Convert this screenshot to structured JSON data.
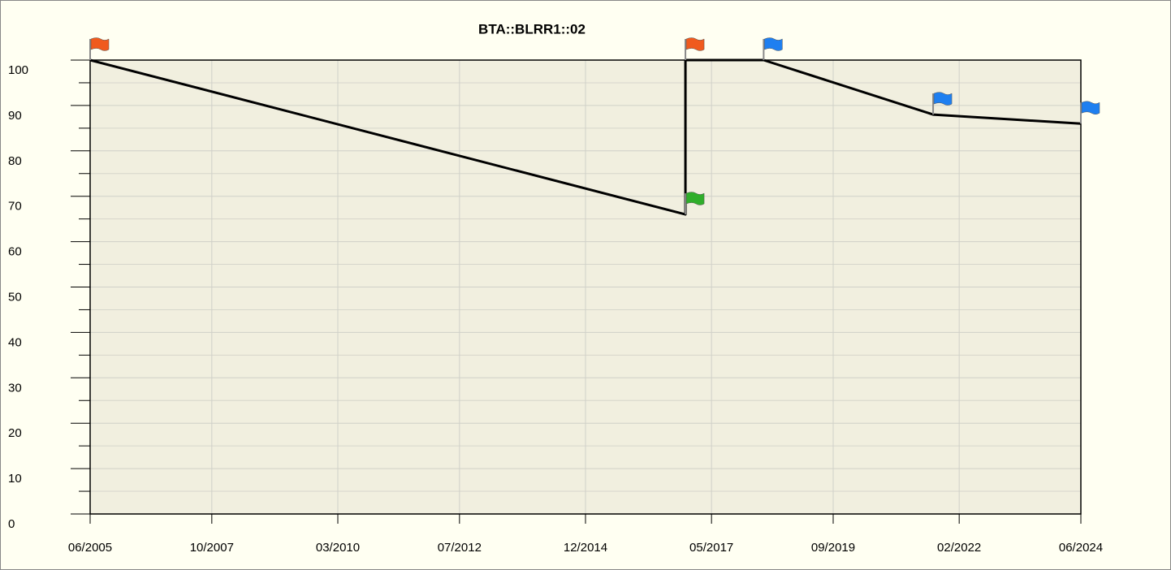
{
  "chart_data": {
    "type": "line",
    "title": "BTA::BLRR1::02",
    "x": [
      "2005-06",
      "2016-11",
      "2016-11",
      "2018-05",
      "2021-08",
      "2024-06"
    ],
    "series": [
      {
        "name": "BTA::BLRR1::02",
        "color": "#000000",
        "values": [
          100,
          66,
          100,
          100,
          88,
          86
        ],
        "point_colors": [
          "#f05a1e",
          "#2fae2a",
          "#f05a1e",
          "#1e7ff0",
          "#1e7ff0",
          "#1e7ff0"
        ]
      }
    ],
    "xlim": [
      "2005-06",
      "2024-06"
    ],
    "xticks": [
      {
        "value": "2005-06",
        "label": "06/2005"
      },
      {
        "value": "2007-10",
        "label": "10/2007"
      },
      {
        "value": "2010-03",
        "label": "03/2010"
      },
      {
        "value": "2012-07",
        "label": "07/2012"
      },
      {
        "value": "2014-12",
        "label": "12/2014"
      },
      {
        "value": "2017-05",
        "label": "05/2017"
      },
      {
        "value": "2019-09",
        "label": "09/2019"
      },
      {
        "value": "2022-02",
        "label": "02/2022"
      },
      {
        "value": "2024-06",
        "label": "06/2024"
      }
    ],
    "ylim": [
      0,
      100
    ],
    "yticks": [
      0,
      10,
      20,
      30,
      40,
      50,
      60,
      70,
      80,
      90,
      100
    ],
    "grid": true
  }
}
